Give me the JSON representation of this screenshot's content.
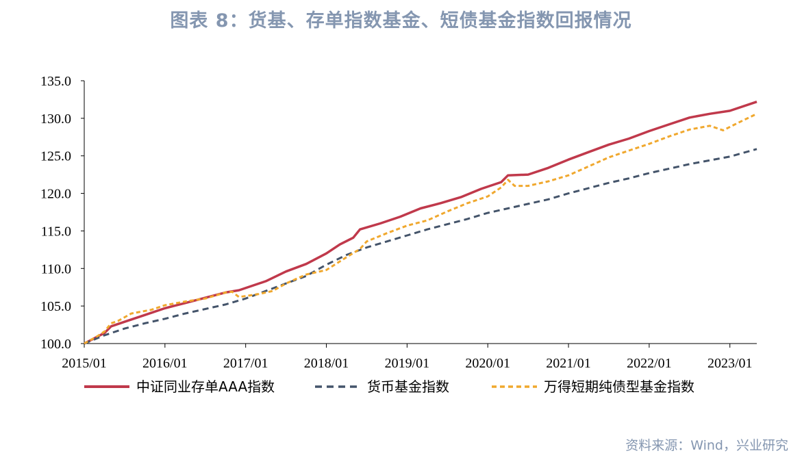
{
  "title": "图表 8：货基、存单指数基金、短债基金指数回报情况",
  "source": "资料来源：Wind，兴业研究",
  "colors": {
    "title": "#8496b0",
    "axis": "#000000"
  },
  "chart_data": {
    "type": "line",
    "ylim": [
      100,
      135
    ],
    "yticks": [
      "135.0",
      "130.0",
      "125.0",
      "120.0",
      "115.0",
      "110.0",
      "105.0",
      "100.0"
    ],
    "xlim": [
      "2015/01",
      "2023/05"
    ],
    "xticks": [
      "2015/01",
      "2016/01",
      "2017/01",
      "2018/01",
      "2019/01",
      "2020/01",
      "2021/01",
      "2022/01",
      "2023/01"
    ],
    "grid": false,
    "legend_position": "bottom",
    "series": [
      {
        "name": "中证同业存单AAA指数",
        "color": "#c0394b",
        "style": "solid",
        "points": [
          [
            "2015/01",
            100.0
          ],
          [
            "2015/04",
            101.4
          ],
          [
            "2015/05",
            102.3
          ],
          [
            "2015/07",
            102.9
          ],
          [
            "2015/10",
            103.8
          ],
          [
            "2016/01",
            104.7
          ],
          [
            "2016/04",
            105.4
          ],
          [
            "2016/07",
            106.1
          ],
          [
            "2016/10",
            106.8
          ],
          [
            "2016/12",
            107.1
          ],
          [
            "2017/02",
            107.7
          ],
          [
            "2017/04",
            108.3
          ],
          [
            "2017/07",
            109.6
          ],
          [
            "2017/10",
            110.6
          ],
          [
            "2018/01",
            112.0
          ],
          [
            "2018/03",
            113.2
          ],
          [
            "2018/05",
            114.1
          ],
          [
            "2018/06",
            115.2
          ],
          [
            "2018/09",
            116.0
          ],
          [
            "2018/12",
            116.9
          ],
          [
            "2019/03",
            118.0
          ],
          [
            "2019/06",
            118.7
          ],
          [
            "2019/09",
            119.5
          ],
          [
            "2019/12",
            120.6
          ],
          [
            "2020/03",
            121.5
          ],
          [
            "2020/04",
            122.4
          ],
          [
            "2020/07",
            122.5
          ],
          [
            "2020/10",
            123.4
          ],
          [
            "2021/01",
            124.5
          ],
          [
            "2021/04",
            125.5
          ],
          [
            "2021/07",
            126.5
          ],
          [
            "2021/10",
            127.3
          ],
          [
            "2022/01",
            128.3
          ],
          [
            "2022/04",
            129.2
          ],
          [
            "2022/07",
            130.1
          ],
          [
            "2022/10",
            130.6
          ],
          [
            "2023/01",
            131.0
          ],
          [
            "2023/05",
            132.2
          ]
        ]
      },
      {
        "name": "货币基金指数",
        "color": "#44546a",
        "style": "dashed",
        "points": [
          [
            "2015/01",
            100.0
          ],
          [
            "2015/04",
            101.1
          ],
          [
            "2015/07",
            102.0
          ],
          [
            "2015/10",
            102.7
          ],
          [
            "2016/01",
            103.3
          ],
          [
            "2016/04",
            104.0
          ],
          [
            "2016/07",
            104.6
          ],
          [
            "2016/10",
            105.2
          ],
          [
            "2017/01",
            106.0
          ],
          [
            "2017/04",
            107.0
          ],
          [
            "2017/07",
            108.0
          ],
          [
            "2017/10",
            109.0
          ],
          [
            "2018/01",
            110.5
          ],
          [
            "2018/04",
            111.8
          ],
          [
            "2018/07",
            112.8
          ],
          [
            "2018/10",
            113.6
          ],
          [
            "2019/01",
            114.4
          ],
          [
            "2019/04",
            115.2
          ],
          [
            "2019/07",
            115.9
          ],
          [
            "2019/10",
            116.6
          ],
          [
            "2020/01",
            117.4
          ],
          [
            "2020/04",
            118.0
          ],
          [
            "2020/07",
            118.6
          ],
          [
            "2020/10",
            119.2
          ],
          [
            "2021/01",
            120.0
          ],
          [
            "2021/04",
            120.7
          ],
          [
            "2021/07",
            121.4
          ],
          [
            "2021/10",
            122.0
          ],
          [
            "2022/01",
            122.7
          ],
          [
            "2022/04",
            123.3
          ],
          [
            "2022/07",
            123.9
          ],
          [
            "2022/10",
            124.4
          ],
          [
            "2023/01",
            124.9
          ],
          [
            "2023/05",
            125.9
          ]
        ]
      },
      {
        "name": "万得短期纯债型基金指数",
        "color": "#f0a82e",
        "style": "dashed",
        "points": [
          [
            "2015/01",
            100.0
          ],
          [
            "2015/03",
            101.0
          ],
          [
            "2015/04",
            101.6
          ],
          [
            "2015/05",
            102.7
          ],
          [
            "2015/06",
            103.0
          ],
          [
            "2015/08",
            104.0
          ],
          [
            "2015/11",
            104.5
          ],
          [
            "2016/01",
            105.1
          ],
          [
            "2016/04",
            105.6
          ],
          [
            "2016/07",
            106.0
          ],
          [
            "2016/10",
            106.8
          ],
          [
            "2016/11",
            106.9
          ],
          [
            "2016/12",
            106.2
          ],
          [
            "2017/03",
            106.6
          ],
          [
            "2017/05",
            107.0
          ],
          [
            "2017/07",
            108.0
          ],
          [
            "2017/10",
            109.2
          ],
          [
            "2018/01",
            109.8
          ],
          [
            "2018/04",
            111.5
          ],
          [
            "2018/06",
            112.6
          ],
          [
            "2018/07",
            113.6
          ],
          [
            "2018/10",
            114.7
          ],
          [
            "2019/01",
            115.7
          ],
          [
            "2019/04",
            116.4
          ],
          [
            "2019/07",
            117.6
          ],
          [
            "2019/10",
            118.7
          ],
          [
            "2020/01",
            119.6
          ],
          [
            "2020/03",
            120.8
          ],
          [
            "2020/04",
            121.8
          ],
          [
            "2020/05",
            121.0
          ],
          [
            "2020/07",
            121.0
          ],
          [
            "2020/10",
            121.6
          ],
          [
            "2021/01",
            122.4
          ],
          [
            "2021/04",
            123.6
          ],
          [
            "2021/07",
            124.8
          ],
          [
            "2021/10",
            125.7
          ],
          [
            "2022/01",
            126.6
          ],
          [
            "2022/04",
            127.6
          ],
          [
            "2022/07",
            128.5
          ],
          [
            "2022/10",
            129.0
          ],
          [
            "2022/12",
            128.4
          ],
          [
            "2023/02",
            129.3
          ],
          [
            "2023/05",
            130.6
          ]
        ]
      }
    ]
  }
}
